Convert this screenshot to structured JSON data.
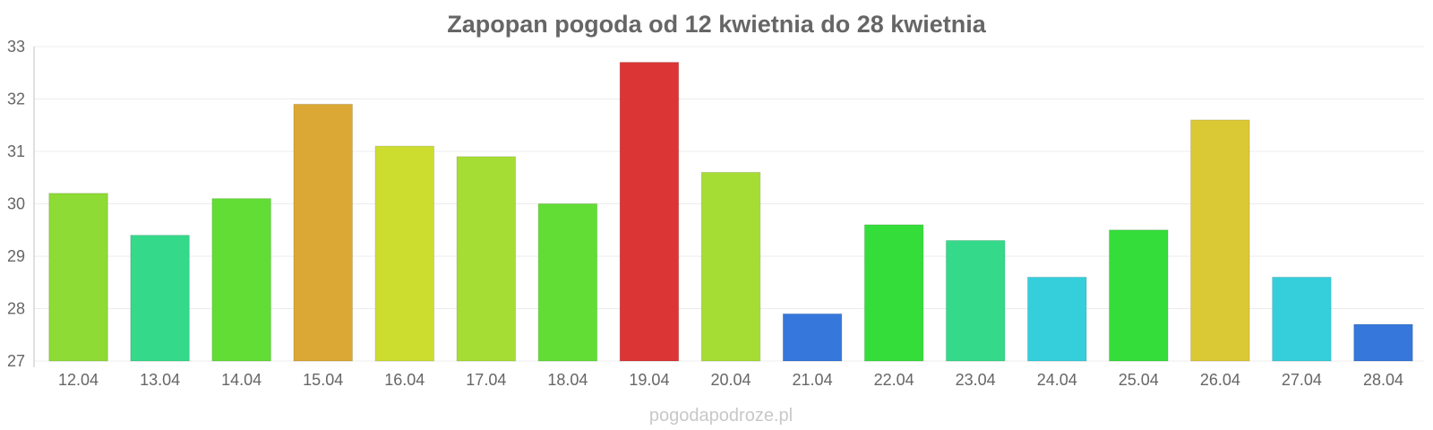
{
  "chart_data": {
    "type": "bar",
    "title": "Zapopan pogoda od 12 kwietnia do 28 kwietnia",
    "categories": [
      "12.04",
      "13.04",
      "14.04",
      "15.04",
      "16.04",
      "17.04",
      "18.04",
      "19.04",
      "20.04",
      "21.04",
      "22.04",
      "23.04",
      "24.04",
      "25.04",
      "26.04",
      "27.04",
      "28.04"
    ],
    "values": [
      30.2,
      29.4,
      30.1,
      31.9,
      31.1,
      30.9,
      30.0,
      32.7,
      30.6,
      27.9,
      29.6,
      29.3,
      28.6,
      29.5,
      31.6,
      28.6,
      27.7
    ],
    "colors": [
      "#8edb35",
      "#35d98a",
      "#62dd35",
      "#dba835",
      "#cddd30",
      "#a6dd35",
      "#62dd35",
      "#db3535",
      "#a6dd35",
      "#3577db",
      "#35dd3a",
      "#35d98a",
      "#35cfdb",
      "#35dd3a",
      "#dbc835",
      "#35cfdb",
      "#3577db"
    ],
    "ylim": [
      27,
      33
    ],
    "yticks": [
      "27",
      "28",
      "29",
      "30",
      "31",
      "32",
      "33"
    ],
    "grid": true,
    "xlabel": "",
    "ylabel": ""
  },
  "watermark": "pogodapodroze.pl"
}
